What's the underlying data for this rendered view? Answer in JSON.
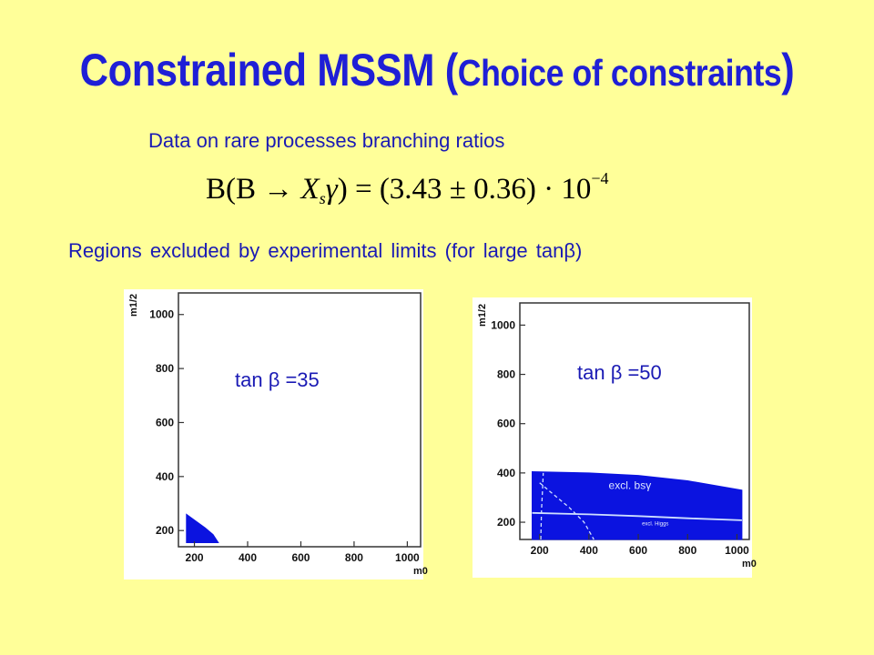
{
  "slide": {
    "title_main": "Constrained MSSM (",
    "title_small": "Choice of constraints",
    "title_end": ")",
    "subtitle": "Data on rare processes branching ratios",
    "formula": {
      "lhs_open": "B(B ",
      "arrow": "→",
      "x": " X",
      "sub_s": "s",
      "gamma": "γ",
      "rhs": ") = (3.43 ± 0.36) · 10",
      "exponent": "−4"
    },
    "regions_text": "Regions excluded by experimental limits (for large tanβ)"
  },
  "colors": {
    "title": "#1f1fd6",
    "text": "#1a1ab4",
    "fill": "#0b13e0",
    "background": "#ffff99"
  },
  "chart_data": [
    {
      "type": "area",
      "label": "tan β =35",
      "xlabel": "m0",
      "ylabel": "m1/2",
      "xlim": [
        140,
        1050
      ],
      "ylim": [
        140,
        1080
      ],
      "xticks": [
        200,
        400,
        600,
        800,
        1000
      ],
      "yticks": [
        200,
        400,
        600,
        800,
        1000
      ],
      "region_name": "",
      "excluded_region": [
        [
          170,
          155
        ],
        [
          170,
          260
        ],
        [
          205,
          235
        ],
        [
          240,
          210
        ],
        [
          270,
          185
        ],
        [
          290,
          155
        ]
      ],
      "curves": []
    },
    {
      "type": "area",
      "label": "tan β =50",
      "xlabel": "m0",
      "ylabel": "m1/2",
      "xlim": [
        120,
        1050
      ],
      "ylim": [
        130,
        1090
      ],
      "xticks": [
        200,
        400,
        600,
        800,
        1000
      ],
      "yticks": [
        200,
        400,
        600,
        800,
        1000
      ],
      "region_name": "excl. bsγ",
      "excluded_region": [
        [
          170,
          130
        ],
        [
          170,
          405
        ],
        [
          400,
          400
        ],
        [
          600,
          390
        ],
        [
          800,
          368
        ],
        [
          1020,
          330
        ],
        [
          1020,
          130
        ]
      ],
      "curves": [
        {
          "name": "excl. Higgs",
          "points": [
            [
              170,
              238
            ],
            [
              400,
              232
            ],
            [
              600,
              225
            ],
            [
              800,
              216
            ],
            [
              1020,
              208
            ]
          ],
          "dash": false
        },
        {
          "name": "",
          "points": [
            [
              200,
              360
            ],
            [
              260,
              310
            ],
            [
              320,
              260
            ],
            [
              380,
              200
            ],
            [
              420,
              130
            ]
          ],
          "dash": true
        },
        {
          "name": "",
          "points": [
            [
              205,
              130
            ],
            [
              208,
              250
            ],
            [
              212,
              330
            ],
            [
              215,
              400
            ]
          ],
          "dash": true
        }
      ]
    }
  ]
}
